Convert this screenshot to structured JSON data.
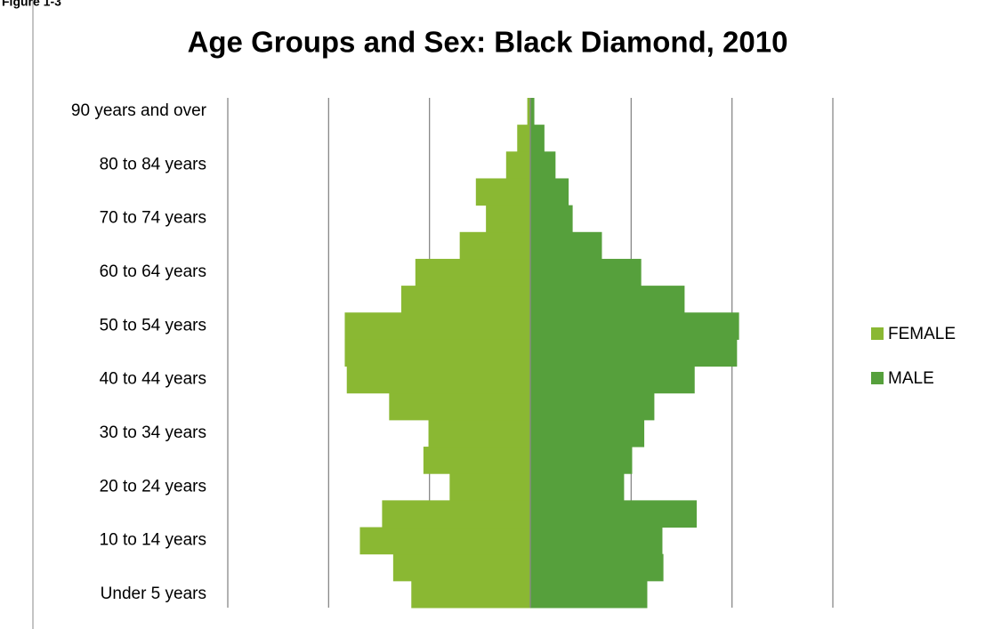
{
  "figure_label": "Figure 1-3",
  "chart_data": {
    "type": "pyramid",
    "title": "Age Groups and Sex: Black Diamond, 2010",
    "categories": [
      "Under 5 years",
      null,
      "10 to 14 years",
      null,
      "20 to 24 years",
      null,
      "30 to 34 years",
      null,
      "40 to 44 years",
      null,
      "50 to 54 years",
      null,
      "60 to 64 years",
      null,
      "70 to 74 years",
      null,
      "80 to 84 years",
      null,
      "90 years and over"
    ],
    "series": [
      {
        "name": "FEMALE",
        "color": "#8ab833",
        "values": [
          -118,
          -136,
          -169,
          -147,
          -80,
          -106,
          -101,
          -140,
          -182,
          -184,
          -184,
          -128,
          -114,
          -70,
          -44,
          -54,
          -24,
          -13,
          -3
        ]
      },
      {
        "name": "MALE",
        "color": "#56a03c",
        "values": [
          116,
          132,
          131,
          165,
          93,
          101,
          113,
          123,
          163,
          205,
          207,
          153,
          110,
          71,
          42,
          38,
          25,
          14,
          4
        ]
      }
    ],
    "xlim": [
      -300,
      300
    ],
    "xticks": [
      -300,
      -200,
      -100,
      0,
      100,
      200,
      300
    ],
    "grid": true,
    "legend": "right"
  }
}
